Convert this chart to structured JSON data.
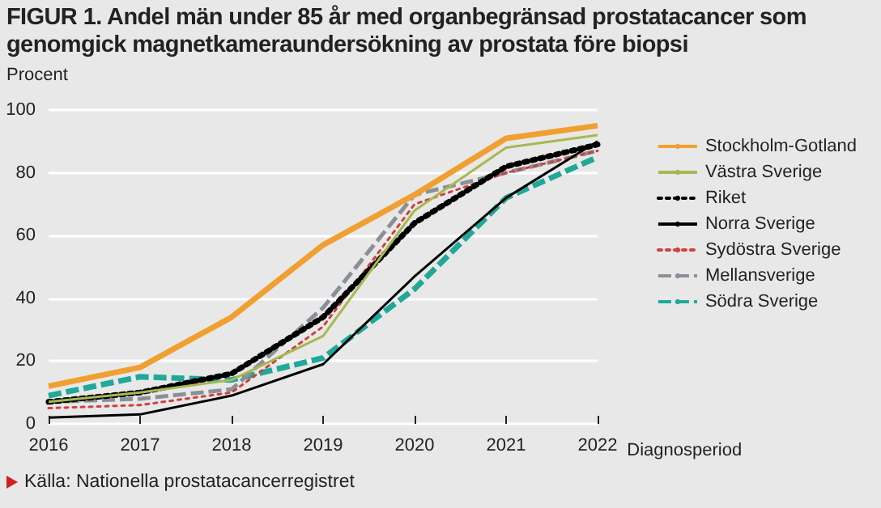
{
  "chart_data": {
    "type": "line",
    "title": "FIGUR 1. Andel män under 85 år med organbegränsad prostatacancer som genomgick magnetkameraundersökning av prostata före biopsi",
    "ylabel": "Procent",
    "xlabel": "Diagnosperiod",
    "annotations": [
      "Källa: Nationella prostatacancerregistret"
    ],
    "categories": [
      "2016",
      "2017",
      "2018",
      "2019",
      "2020",
      "2021",
      "2022"
    ],
    "series": [
      {
        "name": "Stockholm-Gotland",
        "color": "#f0a030",
        "line_style": "solid",
        "values": [
          12,
          18,
          34,
          57,
          73,
          91,
          95
        ]
      },
      {
        "name": "Västra Sverige",
        "color": "#a8b850",
        "line_style": "solid",
        "values": [
          7,
          10,
          14,
          28,
          68,
          88,
          92
        ]
      },
      {
        "name": "Riket",
        "color": "#000000",
        "line_style": "dotted",
        "values": [
          7,
          10,
          16,
          34,
          64,
          82,
          89
        ]
      },
      {
        "name": "Norra Sverige",
        "color": "#000000",
        "line_style": "solid",
        "values": [
          2,
          3,
          9,
          19,
          47,
          72,
          90
        ]
      },
      {
        "name": "Sydöstra Sverige",
        "color": "#d04040",
        "line_style": "dotted",
        "values": [
          5,
          6,
          10,
          31,
          70,
          80,
          87
        ]
      },
      {
        "name": "Mellansverige",
        "color": "#8a9098",
        "line_style": "dashed",
        "values": [
          7,
          8,
          11,
          37,
          73,
          80,
          87
        ]
      },
      {
        "name": "Södra Sverige",
        "color": "#20a898",
        "line_style": "dashed",
        "values": [
          9,
          15,
          14,
          21,
          43,
          72,
          85
        ]
      }
    ],
    "ylim": [
      0,
      100
    ],
    "yticks": [
      0,
      20,
      40,
      60,
      80,
      100
    ],
    "grid": "y",
    "legend": "right",
    "marker": "none"
  }
}
